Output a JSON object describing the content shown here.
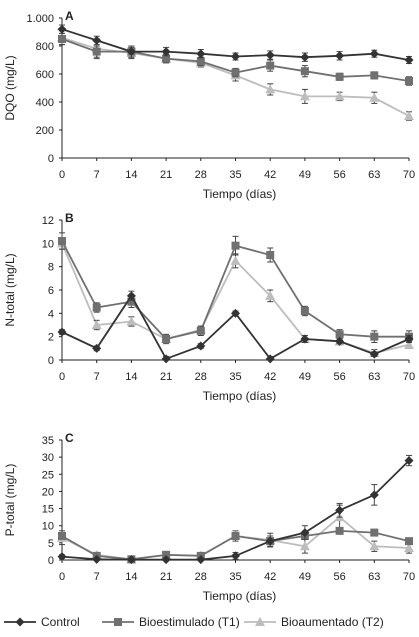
{
  "chart_data": [
    {
      "type": "line",
      "panel_label": "A",
      "ylabel": "DQO (mg/L)",
      "xlabel": "Tiempo (días)",
      "x": [
        0,
        7,
        14,
        21,
        28,
        35,
        42,
        49,
        56,
        63,
        70
      ],
      "x_tick_labels": [
        "0",
        "7",
        "14",
        "21",
        "28",
        "35",
        "42",
        "49",
        "56",
        "63",
        "70"
      ],
      "ylim": [
        0,
        1000
      ],
      "y_ticks": [
        0,
        200,
        400,
        600,
        800,
        1000
      ],
      "y_tick_labels": [
        "0",
        "200",
        "400",
        "600",
        "800",
        "1.000"
      ],
      "series": [
        {
          "name": "Control",
          "color": "#333333",
          "marker": "diamond",
          "values": [
            920,
            840,
            760,
            760,
            745,
            725,
            735,
            720,
            730,
            745,
            700
          ],
          "errors": [
            30,
            30,
            40,
            30,
            30,
            25,
            30,
            30,
            30,
            25,
            25
          ]
        },
        {
          "name": "Bioestimulado (T1)",
          "color": "#707070",
          "marker": "square",
          "values": [
            850,
            760,
            760,
            710,
            690,
            610,
            660,
            620,
            580,
            590,
            550
          ],
          "errors": [
            40,
            40,
            40,
            30,
            30,
            30,
            40,
            40,
            25,
            25,
            30
          ]
        },
        {
          "name": "Bioaumentado (T2)",
          "color": "#bdbdbd",
          "marker": "triangle",
          "values": [
            860,
            780,
            750,
            710,
            680,
            590,
            490,
            440,
            440,
            430,
            300
          ],
          "errors": [
            50,
            70,
            40,
            30,
            30,
            40,
            40,
            50,
            30,
            40,
            30
          ]
        }
      ]
    },
    {
      "type": "line",
      "panel_label": "B",
      "ylabel": "N-total (mg/L)",
      "xlabel": "Tiempo (días)",
      "x": [
        0,
        7,
        14,
        21,
        28,
        35,
        42,
        49,
        56,
        63,
        70
      ],
      "x_tick_labels": [
        "0",
        "7",
        "14",
        "21",
        "28",
        "35",
        "42",
        "49",
        "56",
        "63",
        "70"
      ],
      "ylim": [
        0,
        12
      ],
      "y_ticks": [
        0,
        2,
        4,
        6,
        8,
        10,
        12
      ],
      "y_tick_labels": [
        "0",
        "2",
        "4",
        "6",
        "8",
        "10",
        "12"
      ],
      "series": [
        {
          "name": "Control",
          "color": "#333333",
          "marker": "diamond",
          "values": [
            2.4,
            1.0,
            5.5,
            0.1,
            1.2,
            4.0,
            0.1,
            1.8,
            1.6,
            0.5,
            1.8
          ],
          "errors": [
            0.2,
            0.2,
            0.4,
            0.2,
            0.2,
            0.2,
            0.2,
            0.3,
            0.2,
            0.2,
            0.3
          ]
        },
        {
          "name": "Bioestimulado (T1)",
          "color": "#707070",
          "marker": "square",
          "values": [
            10.2,
            4.5,
            5.0,
            1.8,
            2.5,
            9.8,
            9.0,
            4.2,
            2.2,
            2.0,
            2.0
          ],
          "errors": [
            0.7,
            0.4,
            0.5,
            0.4,
            0.4,
            0.8,
            0.6,
            0.4,
            0.4,
            0.5,
            0.5
          ]
        },
        {
          "name": "Bioaumentado (T2)",
          "color": "#bdbdbd",
          "marker": "triangle",
          "values": [
            10.0,
            3.0,
            3.3,
            1.8,
            2.6,
            8.5,
            5.5,
            1.8,
            1.6,
            0.6,
            1.3
          ],
          "errors": [
            0.5,
            0.4,
            0.4,
            0.3,
            0.3,
            0.6,
            0.5,
            0.3,
            0.3,
            0.3,
            0.3
          ]
        }
      ]
    },
    {
      "type": "line",
      "panel_label": "C",
      "ylabel": "P-total (mg/L)",
      "xlabel": "Tiempo (días)",
      "x": [
        0,
        7,
        14,
        21,
        28,
        35,
        42,
        49,
        56,
        63,
        70
      ],
      "x_tick_labels": [
        "0",
        "7",
        "14",
        "21",
        "28",
        "35",
        "42",
        "49",
        "56",
        "63",
        "70"
      ],
      "ylim": [
        0,
        35
      ],
      "y_ticks": [
        0,
        5,
        10,
        15,
        20,
        25,
        30,
        35
      ],
      "y_tick_labels": [
        "0",
        "5",
        "10",
        "15",
        "20",
        "25",
        "30",
        "35"
      ],
      "series": [
        {
          "name": "Control",
          "color": "#333333",
          "marker": "diamond",
          "values": [
            1.0,
            0.2,
            0.1,
            0.1,
            0.1,
            1.2,
            5.5,
            8.0,
            14.5,
            19.0,
            29.0
          ],
          "errors": [
            0.5,
            0.3,
            0.3,
            0.3,
            0.3,
            1.0,
            1.5,
            2.0,
            2.0,
            3.0,
            1.5
          ]
        },
        {
          "name": "Bioestimulado (T1)",
          "color": "#707070",
          "marker": "square",
          "values": [
            7.0,
            1.2,
            0.2,
            1.5,
            1.2,
            7.0,
            5.5,
            7.0,
            8.5,
            8.0,
            5.5
          ]
        },
        {
          "name": "Bioaumentado (T2)",
          "color": "#bdbdbd",
          "marker": "triangle",
          "values": [
            6.5,
            1.5,
            0.2,
            1.5,
            1.3,
            7.0,
            5.8,
            4.0,
            12.5,
            4.0,
            3.5
          ],
          "errors": [
            2.0,
            0.5,
            0.3,
            0.5,
            0.4,
            1.5,
            2.0,
            2.0,
            3.5,
            1.5,
            1.5
          ]
        }
      ]
    }
  ],
  "legend": {
    "items": [
      "Control",
      "Bioestimulado (T1)",
      "Bioaumentado (T2)"
    ],
    "position": "bottom"
  }
}
